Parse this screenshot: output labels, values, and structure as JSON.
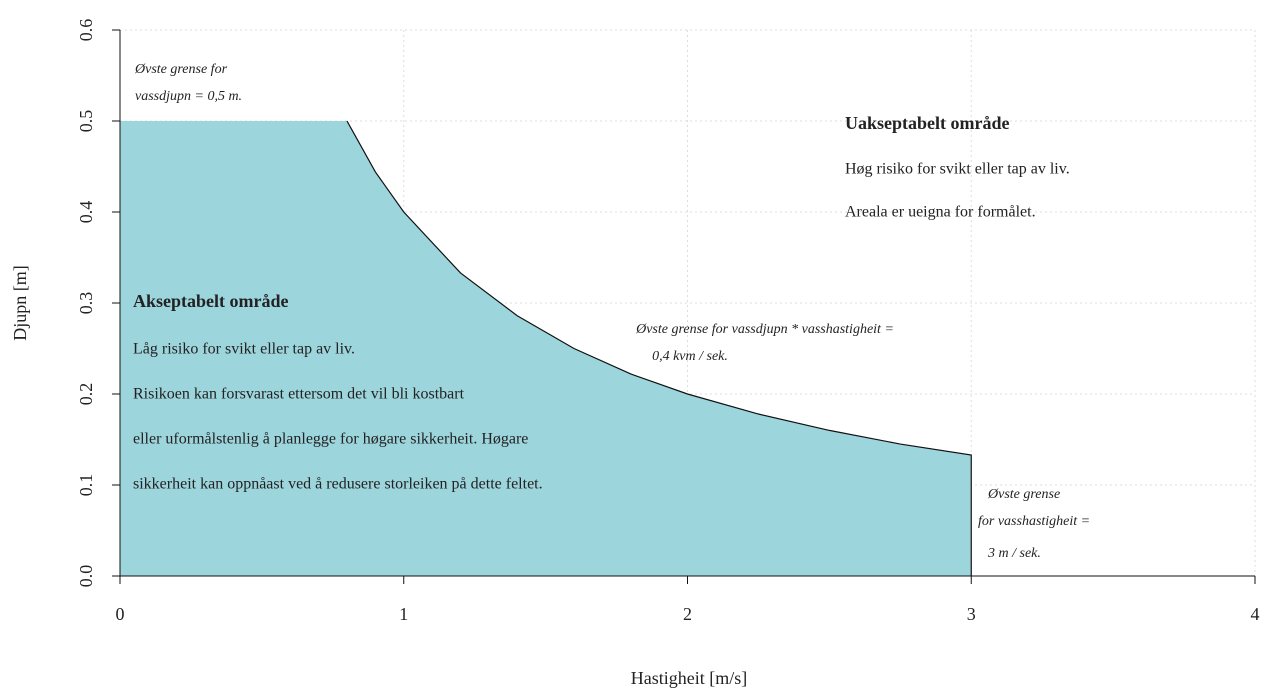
{
  "chart_data": {
    "type": "area",
    "xlabel": "Hastigheit [m/s]",
    "ylabel": "Djupn [m]",
    "x": [
      0,
      0.8,
      0.9,
      1,
      1.2,
      1.4,
      1.6,
      1.8,
      2,
      2.25,
      2.5,
      2.75,
      3
    ],
    "values": [
      0.5,
      0.5,
      0.444,
      0.4,
      0.333,
      0.286,
      0.25,
      0.222,
      0.2,
      0.178,
      0.16,
      0.145,
      0.133
    ],
    "color": "#9dd5dd",
    "xlim": [
      0,
      4
    ],
    "ylim": [
      0,
      0.6
    ],
    "xticks": [
      0,
      1,
      2,
      3,
      4
    ],
    "yticks": [
      {
        "value": 0,
        "label": "0.0"
      },
      0.1,
      0.2,
      0.3,
      0.4,
      0.5,
      0.6
    ],
    "grid": true,
    "annotations": [
      {
        "lines": [
          "Øvste grense for",
          "vassdjupn = 0,5 m."
        ]
      },
      {
        "title": "Uakseptabelt område",
        "lines": [
          "Høg risiko for svikt eller tap av liv.",
          "Areala er ueigna for formålet."
        ]
      },
      {
        "title": "Akseptabelt område",
        "lines": [
          "Låg risiko for svikt eller tap av liv.",
          "Risikoen kan forsvarast ettersom det vil bli kostbart",
          "eller uformålstenlig å planlegge for høgare sikkerheit. Høgare",
          "sikkerheit kan oppnåast ved å redusere storleiken på dette feltet."
        ]
      },
      {
        "lines": [
          "Øvste grense for vassdjupn * vasshastigheit =",
          "0,4 kvm / sek."
        ]
      },
      {
        "lines": [
          "Øvste grense",
          "for vasshastigheit =",
          "3 m / sek."
        ]
      }
    ]
  }
}
